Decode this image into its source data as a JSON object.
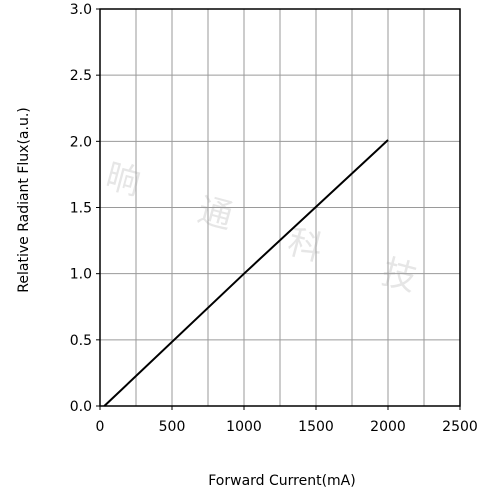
{
  "chart_data": {
    "type": "line",
    "xlabel": "Forward Current(mA)",
    "ylabel": "Relative Radiant Flux(a.u.)",
    "xlim": [
      0,
      2500
    ],
    "ylim": [
      0,
      3.0
    ],
    "x_ticks": [
      "0",
      "500",
      "1000",
      "1500",
      "2000",
      "2500"
    ],
    "y_ticks": [
      "0.0",
      "0.5",
      "1.0",
      "1.5",
      "2.0",
      "2.5",
      "3.0"
    ],
    "grid": true,
    "series": [
      {
        "x": [
          30,
          1000,
          2000
        ],
        "y": [
          0.0,
          1.0,
          2.01
        ]
      }
    ]
  },
  "watermark": {
    "chars": [
      "晌",
      "通",
      "科",
      "技"
    ]
  },
  "colors": {
    "line": "#000000",
    "grid": "#9a9a9a",
    "axis": "#000000",
    "watermark": "#e6e6e6"
  }
}
